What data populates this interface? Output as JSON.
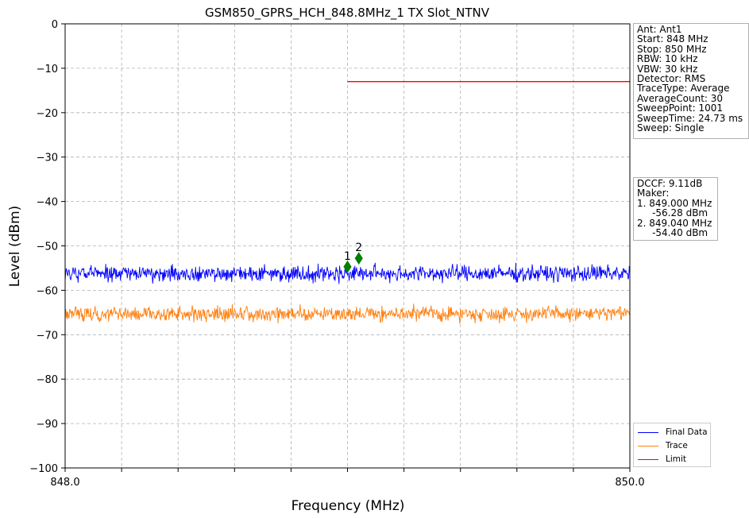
{
  "chart_data": {
    "type": "line",
    "title": "GSM850_GPRS_HCH_848.8MHz_1 TX Slot_NTNV",
    "xlabel": "Frequency (MHz)",
    "ylabel": "Level (dBm)",
    "xlim": [
      848.0,
      850.0
    ],
    "ylim": [
      -100,
      0
    ],
    "x_tick_labels": [
      {
        "value": 848.0,
        "label": "848.0"
      },
      {
        "value": 850.0,
        "label": "850.0"
      }
    ],
    "x_ticks_unlabeled": [
      848.2,
      848.4,
      848.6,
      848.8,
      849.0,
      849.2,
      849.4,
      849.6,
      849.8
    ],
    "y_ticks": [
      0,
      -10,
      -20,
      -30,
      -40,
      -50,
      -60,
      -70,
      -80,
      -90,
      -100
    ],
    "y_tick_labels": [
      "0",
      "−10",
      "−20",
      "−30",
      "−40",
      "−50",
      "−60",
      "−70",
      "−80",
      "−90",
      "−100"
    ],
    "grid": true,
    "series": [
      {
        "name": "Final Data",
        "color": "#0000ff",
        "kind": "noise",
        "x_start": 848.0,
        "x_end": 850.0,
        "points": 1001,
        "mean": -56.2,
        "spread": 1.3
      },
      {
        "name": "Trace",
        "color": "#ff7f0e",
        "kind": "noise",
        "x_start": 848.0,
        "x_end": 850.0,
        "points": 1001,
        "mean": -65.3,
        "spread": 1.2
      },
      {
        "name": "Limit",
        "color": "#ff0000",
        "kind": "line",
        "x": [
          849.0,
          850.0
        ],
        "y": [
          -13,
          -13
        ]
      }
    ],
    "markers": [
      {
        "label": "1",
        "x": 849.0,
        "y": -54.7,
        "color": "#008000"
      },
      {
        "label": "2",
        "x": 849.04,
        "y": -52.8,
        "color": "#008000"
      }
    ],
    "legend_position": "bottom-right, outside plot"
  },
  "info_settings": [
    "Ant: Ant1",
    "Start: 848 MHz",
    "Stop: 850 MHz",
    "RBW: 10 kHz",
    "VBW: 30 kHz",
    "Detector: RMS",
    "TraceType: Average",
    "AverageCount: 30",
    "SweepPoint: 1001",
    "SweepTime: 24.73 ms",
    "Sweep: Single"
  ],
  "info_markers": [
    "DCCF: 9.11dB",
    "Maker:",
    "1. 849.000 MHz",
    "     -56.28 dBm",
    "2. 849.040 MHz",
    "     -54.40 dBm"
  ],
  "legend": {
    "final_label": "Final Data",
    "trace_label": "Trace",
    "limit_label": "Limit"
  }
}
